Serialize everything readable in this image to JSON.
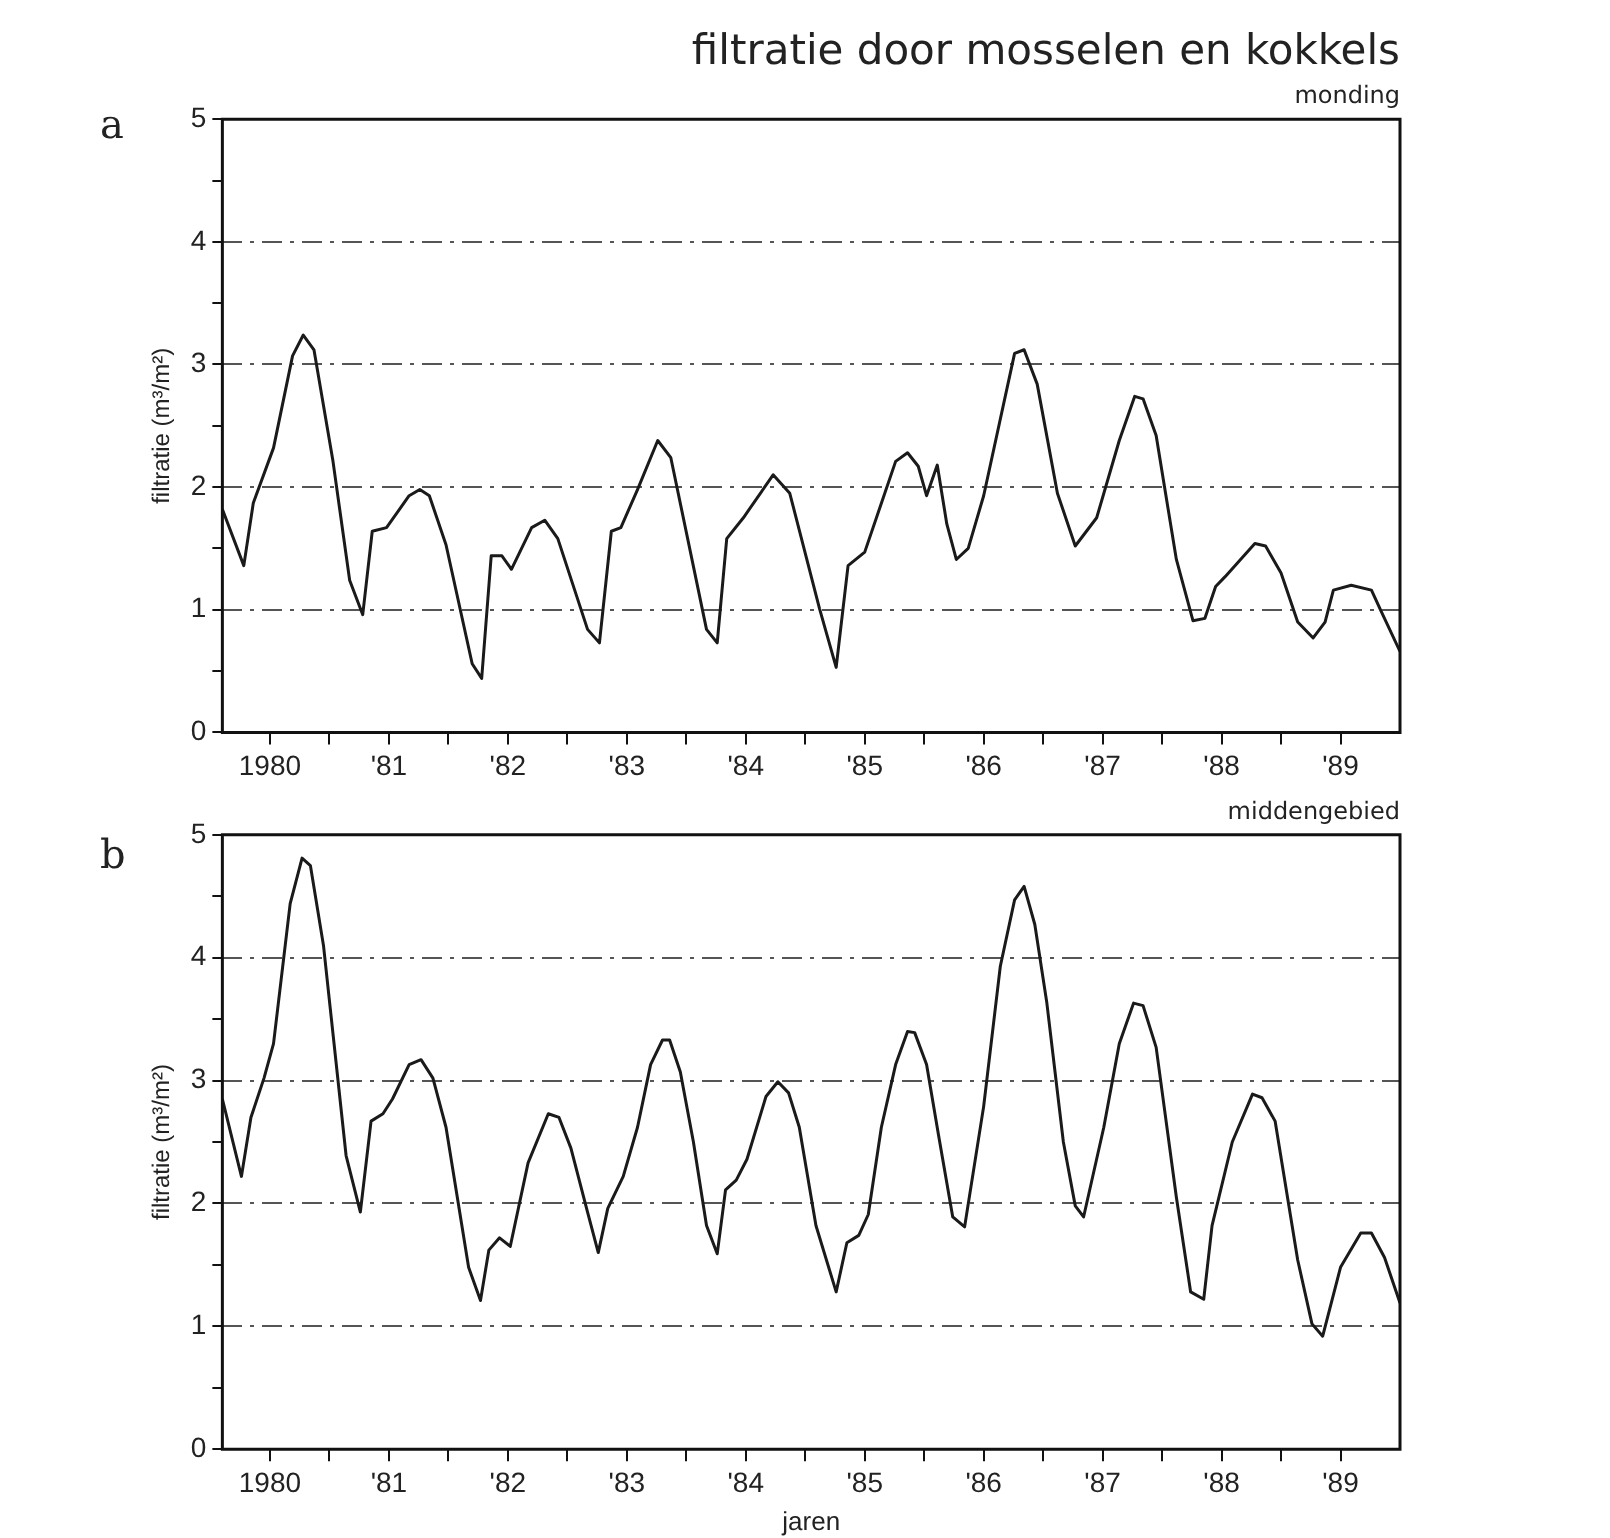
{
  "chart_data": [
    {
      "type": "line",
      "title": "filtratie door mosselen en kokkels",
      "subtitle": "monding",
      "ylabel": "filtratie (m³/m²)",
      "annotations": [
        "a"
      ],
      "xlim": [
        1979.6,
        1989.5
      ],
      "xticks": [
        {
          "value": 1980,
          "label": "1980"
        },
        {
          "value": 1980.5,
          "label": null
        },
        {
          "value": 1981,
          "label": "'81"
        },
        {
          "value": 1981.5,
          "label": null
        },
        {
          "value": 1982,
          "label": "'82"
        },
        {
          "value": 1982.5,
          "label": null
        },
        {
          "value": 1983,
          "label": "'83"
        },
        {
          "value": 1983.5,
          "label": null
        },
        {
          "value": 1984,
          "label": "'84"
        },
        {
          "value": 1984.5,
          "label": null
        },
        {
          "value": 1985,
          "label": "'85"
        },
        {
          "value": 1985.5,
          "label": null
        },
        {
          "value": 1986,
          "label": "'86"
        },
        {
          "value": 1986.5,
          "label": null
        },
        {
          "value": 1987,
          "label": "'87"
        },
        {
          "value": 1987.5,
          "label": null
        },
        {
          "value": 1988,
          "label": "'88"
        },
        {
          "value": 1988.5,
          "label": null
        },
        {
          "value": 1989,
          "label": "'89"
        }
      ],
      "ylim": [
        0,
        5
      ],
      "yticks": [
        0,
        {
          "value": 0.5,
          "label": null
        },
        1,
        {
          "value": 1.5,
          "label": null
        },
        2,
        {
          "value": 2.5,
          "label": null
        },
        3,
        {
          "value": 3.5,
          "label": null
        },
        4,
        {
          "value": 4.5,
          "label": null
        },
        5
      ],
      "grid": "y",
      "marker": "none",
      "line_style": "solid",
      "series": [
        {
          "color": "#1a1a1a",
          "x": [
            1979.6,
            1979.78,
            1979.86,
            1980.03,
            1980.19,
            1980.28,
            1980.37,
            1980.53,
            1980.67,
            1980.78,
            1980.86,
            1980.98,
            1981.17,
            1981.26,
            1981.34,
            1981.48,
            1981.7,
            1981.78,
            1981.86,
            1981.95,
            1982.03,
            1982.2,
            1982.31,
            1982.42,
            1982.67,
            1982.77,
            1982.87,
            1982.95,
            1983.09,
            1983.26,
            1983.37,
            1983.67,
            1983.76,
            1983.84,
            1983.98,
            1984.23,
            1984.37,
            1984.62,
            1984.76,
            1984.86,
            1985,
            1985.26,
            1985.36,
            1985.45,
            1985.52,
            1985.61,
            1985.69,
            1985.77,
            1985.87,
            1986,
            1986.26,
            1986.34,
            1986.45,
            1986.62,
            1986.77,
            1986.95,
            1987.14,
            1987.27,
            1987.34,
            1987.45,
            1987.62,
            1987.76,
            1987.86,
            1987.95,
            1988.03,
            1988.28,
            1988.37,
            1988.5,
            1988.64,
            1988.77,
            1988.87,
            1988.94,
            1989.09,
            1989.26,
            1989.34,
            1989.5
          ],
          "values": [
            1.82,
            1.36,
            1.87,
            2.32,
            3.07,
            3.24,
            3.12,
            2.21,
            1.24,
            0.96,
            1.64,
            1.67,
            1.93,
            1.98,
            1.93,
            1.53,
            0.56,
            0.44,
            1.44,
            1.44,
            1.33,
            1.67,
            1.73,
            1.58,
            0.84,
            0.73,
            1.64,
            1.67,
            1.98,
            2.38,
            2.24,
            0.84,
            0.73,
            1.58,
            1.75,
            2.1,
            1.95,
            1.01,
            0.53,
            1.36,
            1.47,
            2.21,
            2.28,
            2.17,
            1.93,
            2.18,
            1.7,
            1.41,
            1.5,
            1.93,
            3.09,
            3.12,
            2.84,
            1.95,
            1.52,
            1.75,
            2.38,
            2.74,
            2.72,
            2.42,
            1.41,
            0.91,
            0.93,
            1.19,
            1.27,
            1.54,
            1.52,
            1.3,
            0.9,
            0.77,
            0.9,
            1.16,
            1.2,
            1.16,
            0.99,
            0.66
          ]
        }
      ]
    },
    {
      "type": "line",
      "subtitle": "middengebied",
      "xlabel": "jaren",
      "ylabel": "filtratie (m³/m²)",
      "annotations": [
        "b"
      ],
      "xlim": [
        1979.6,
        1989.5
      ],
      "xticks": [
        {
          "value": 1980,
          "label": "1980"
        },
        {
          "value": 1980.5,
          "label": null
        },
        {
          "value": 1981,
          "label": "'81"
        },
        {
          "value": 1981.5,
          "label": null
        },
        {
          "value": 1982,
          "label": "'82"
        },
        {
          "value": 1982.5,
          "label": null
        },
        {
          "value": 1983,
          "label": "'83"
        },
        {
          "value": 1983.5,
          "label": null
        },
        {
          "value": 1984,
          "label": "'84"
        },
        {
          "value": 1984.5,
          "label": null
        },
        {
          "value": 1985,
          "label": "'85"
        },
        {
          "value": 1985.5,
          "label": null
        },
        {
          "value": 1986,
          "label": "'86"
        },
        {
          "value": 1986.5,
          "label": null
        },
        {
          "value": 1987,
          "label": "'87"
        },
        {
          "value": 1987.5,
          "label": null
        },
        {
          "value": 1988,
          "label": "'88"
        },
        {
          "value": 1988.5,
          "label": null
        },
        {
          "value": 1989,
          "label": "'89"
        }
      ],
      "ylim": [
        0,
        5
      ],
      "yticks": [
        0,
        {
          "value": 0.5,
          "label": null
        },
        1,
        {
          "value": 1.5,
          "label": null
        },
        2,
        {
          "value": 2.5,
          "label": null
        },
        3,
        {
          "value": 3.5,
          "label": null
        },
        4,
        {
          "value": 4.5,
          "label": null
        },
        5
      ],
      "grid": "y",
      "marker": "none",
      "line_style": "solid",
      "series": [
        {
          "color": "#1a1a1a",
          "x": [
            1979.6,
            1979.76,
            1979.84,
            1979.95,
            1980.03,
            1980.17,
            1980.27,
            1980.34,
            1980.45,
            1980.64,
            1980.76,
            1980.85,
            1980.95,
            1981.03,
            1981.17,
            1981.27,
            1981.37,
            1981.48,
            1981.67,
            1981.77,
            1981.84,
            1981.93,
            1982.02,
            1982.17,
            1982.34,
            1982.43,
            1982.53,
            1982.67,
            1982.76,
            1982.84,
            1982.97,
            1983.09,
            1983.2,
            1983.3,
            1983.36,
            1983.45,
            1983.56,
            1983.67,
            1983.76,
            1983.83,
            1983.92,
            1984.01,
            1984.17,
            1984.27,
            1984.36,
            1984.45,
            1984.59,
            1984.76,
            1984.85,
            1984.95,
            1985.03,
            1985.14,
            1985.26,
            1985.36,
            1985.42,
            1985.52,
            1985.62,
            1985.74,
            1985.84,
            1986,
            1986.14,
            1986.26,
            1986.34,
            1986.43,
            1986.53,
            1986.67,
            1986.77,
            1986.84,
            1987.01,
            1987.14,
            1987.26,
            1987.34,
            1987.45,
            1987.62,
            1987.74,
            1987.85,
            1987.92,
            1988.09,
            1988.26,
            1988.34,
            1988.45,
            1988.64,
            1988.76,
            1988.85,
            1989,
            1989.17,
            1989.26,
            1989.37,
            1989.5
          ],
          "values": [
            2.85,
            2.22,
            2.7,
            3.02,
            3.3,
            4.44,
            4.81,
            4.75,
            4.1,
            2.39,
            1.93,
            2.67,
            2.73,
            2.85,
            3.13,
            3.17,
            3.02,
            2.62,
            1.48,
            1.21,
            1.62,
            1.72,
            1.65,
            2.33,
            2.73,
            2.7,
            2.45,
            1.93,
            1.6,
            1.96,
            2.22,
            2.62,
            3.13,
            3.33,
            3.33,
            3.07,
            2.5,
            1.82,
            1.59,
            2.11,
            2.19,
            2.36,
            2.87,
            2.99,
            2.9,
            2.62,
            1.82,
            1.28,
            1.68,
            1.74,
            1.91,
            2.62,
            3.13,
            3.4,
            3.39,
            3.13,
            2.56,
            1.89,
            1.81,
            2.79,
            3.93,
            4.47,
            4.58,
            4.27,
            3.64,
            2.5,
            1.98,
            1.89,
            2.62,
            3.3,
            3.63,
            3.61,
            3.27,
            2.05,
            1.28,
            1.22,
            1.82,
            2.5,
            2.89,
            2.86,
            2.67,
            1.54,
            1.02,
            0.92,
            1.48,
            1.76,
            1.76,
            1.56,
            1.19
          ]
        }
      ]
    }
  ]
}
